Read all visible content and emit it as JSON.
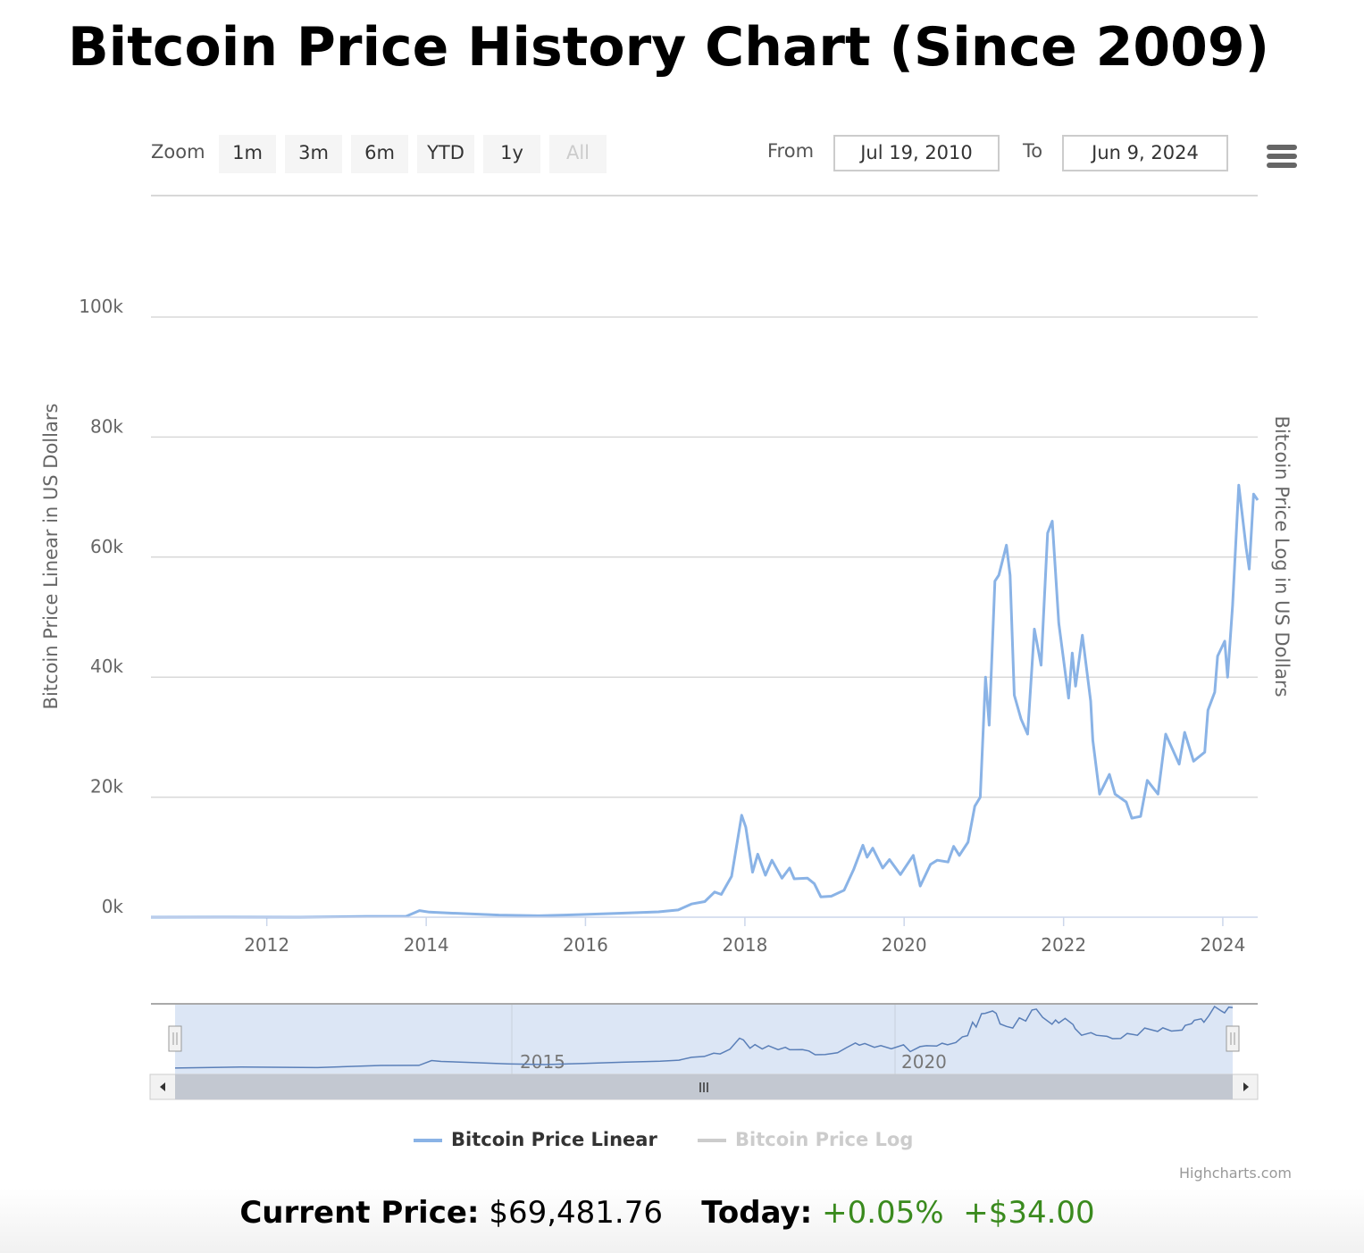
{
  "title": "Bitcoin Price History Chart (Since 2009)",
  "toolbar": {
    "zoom_label": "Zoom",
    "buttons": [
      "1m",
      "3m",
      "6m",
      "YTD",
      "1y",
      "All"
    ],
    "disabled_button": "All",
    "from_label": "From",
    "from_value": "Jul 19, 2010",
    "to_label": "To",
    "to_value": "Jun 9, 2024",
    "menu_icon": "hamburger-menu-icon"
  },
  "chart_data": {
    "type": "line",
    "ylabel": "Bitcoin Price Linear in US Dollars",
    "ylabel_right": "Bitcoin Price Log in US Dollars",
    "ylim": [
      0,
      100000
    ],
    "xlim": [
      "2010-07-19",
      "2024-06-09"
    ],
    "y_ticks": [
      {
        "value": 0,
        "label": "0k"
      },
      {
        "value": 20000,
        "label": "20k"
      },
      {
        "value": 40000,
        "label": "40k"
      },
      {
        "value": 60000,
        "label": "60k"
      },
      {
        "value": 80000,
        "label": "80k"
      },
      {
        "value": 100000,
        "label": "100k"
      }
    ],
    "x_ticks": [
      "2012",
      "2014",
      "2016",
      "2018",
      "2020",
      "2022",
      "2024"
    ],
    "navigator_ticks": [
      "2015",
      "2020"
    ],
    "grid": true,
    "legend_position": "bottom",
    "series": [
      {
        "name": "Bitcoin Price Linear",
        "color": "#8ab3e6",
        "visible": true,
        "points": [
          [
            "2010-07-19",
            0.1
          ],
          [
            "2011-06-01",
            20
          ],
          [
            "2012-06-01",
            6
          ],
          [
            "2013-04-01",
            140
          ],
          [
            "2013-10-01",
            150
          ],
          [
            "2013-12-01",
            1100
          ],
          [
            "2014-01-15",
            850
          ],
          [
            "2014-06-01",
            620
          ],
          [
            "2014-12-01",
            350
          ],
          [
            "2015-06-01",
            240
          ],
          [
            "2015-12-01",
            430
          ],
          [
            "2016-06-01",
            650
          ],
          [
            "2016-12-01",
            900
          ],
          [
            "2017-03-01",
            1200
          ],
          [
            "2017-05-01",
            2200
          ],
          [
            "2017-07-01",
            2600
          ],
          [
            "2017-08-15",
            4200
          ],
          [
            "2017-09-15",
            3800
          ],
          [
            "2017-11-01",
            6800
          ],
          [
            "2017-12-17",
            17000
          ],
          [
            "2018-01-05",
            15000
          ],
          [
            "2018-02-05",
            7500
          ],
          [
            "2018-03-01",
            10500
          ],
          [
            "2018-04-05",
            7000
          ],
          [
            "2018-05-05",
            9500
          ],
          [
            "2018-06-20",
            6500
          ],
          [
            "2018-07-25",
            8200
          ],
          [
            "2018-08-15",
            6400
          ],
          [
            "2018-10-15",
            6500
          ],
          [
            "2018-11-15",
            5600
          ],
          [
            "2018-12-15",
            3400
          ],
          [
            "2019-02-01",
            3500
          ],
          [
            "2019-04-01",
            4500
          ],
          [
            "2019-05-15",
            8000
          ],
          [
            "2019-06-26",
            12000
          ],
          [
            "2019-07-15",
            10000
          ],
          [
            "2019-08-10",
            11500
          ],
          [
            "2019-09-25",
            8200
          ],
          [
            "2019-10-26",
            9600
          ],
          [
            "2019-12-15",
            7100
          ],
          [
            "2020-02-12",
            10300
          ],
          [
            "2020-03-15",
            5200
          ],
          [
            "2020-05-01",
            8800
          ],
          [
            "2020-06-01",
            9500
          ],
          [
            "2020-07-20",
            9200
          ],
          [
            "2020-08-15",
            11800
          ],
          [
            "2020-09-10",
            10300
          ],
          [
            "2020-10-20",
            12500
          ],
          [
            "2020-11-20",
            18500
          ],
          [
            "2020-12-15",
            20000
          ],
          [
            "2021-01-08",
            40000
          ],
          [
            "2021-01-25",
            32000
          ],
          [
            "2021-02-20",
            56000
          ],
          [
            "2021-03-10",
            57000
          ],
          [
            "2021-04-14",
            62000
          ],
          [
            "2021-05-01",
            57000
          ],
          [
            "2021-05-20",
            37000
          ],
          [
            "2021-06-20",
            33000
          ],
          [
            "2021-07-20",
            30500
          ],
          [
            "2021-08-20",
            48000
          ],
          [
            "2021-09-20",
            42000
          ],
          [
            "2021-10-20",
            64000
          ],
          [
            "2021-11-10",
            66000
          ],
          [
            "2021-12-10",
            49000
          ],
          [
            "2022-01-24",
            36500
          ],
          [
            "2022-02-10",
            44000
          ],
          [
            "2022-02-25",
            38500
          ],
          [
            "2022-03-28",
            47000
          ],
          [
            "2022-05-05",
            36000
          ],
          [
            "2022-05-15",
            29500
          ],
          [
            "2022-06-15",
            20500
          ],
          [
            "2022-07-30",
            23800
          ],
          [
            "2022-08-25",
            20500
          ],
          [
            "2022-10-15",
            19200
          ],
          [
            "2022-11-10",
            16500
          ],
          [
            "2022-12-20",
            16800
          ],
          [
            "2023-01-20",
            22800
          ],
          [
            "2023-03-10",
            20500
          ],
          [
            "2023-04-14",
            30500
          ],
          [
            "2023-06-15",
            25500
          ],
          [
            "2023-07-10",
            30800
          ],
          [
            "2023-08-20",
            26000
          ],
          [
            "2023-10-10",
            27500
          ],
          [
            "2023-10-25",
            34500
          ],
          [
            "2023-11-25",
            37500
          ],
          [
            "2023-12-08",
            43500
          ],
          [
            "2024-01-10",
            46000
          ],
          [
            "2024-01-23",
            40000
          ],
          [
            "2024-02-15",
            52000
          ],
          [
            "2024-03-14",
            72000
          ],
          [
            "2024-04-17",
            61500
          ],
          [
            "2024-05-01",
            58000
          ],
          [
            "2024-05-21",
            70500
          ],
          [
            "2024-06-09",
            69500
          ]
        ]
      },
      {
        "name": "Bitcoin Price Log",
        "color": "#cccccc",
        "visible": false
      }
    ]
  },
  "navigator": {
    "handle_icon": "grip-handle-icon",
    "scroll_left_icon": "arrow-left-icon",
    "scroll_right_icon": "arrow-right-icon"
  },
  "credits": "Highcharts.com",
  "footer": {
    "current_price_label": "Current Price:",
    "current_price": "$69,481.76",
    "today_label": "Today:",
    "today_pct": "+0.05%",
    "today_abs": "+$34.00"
  }
}
